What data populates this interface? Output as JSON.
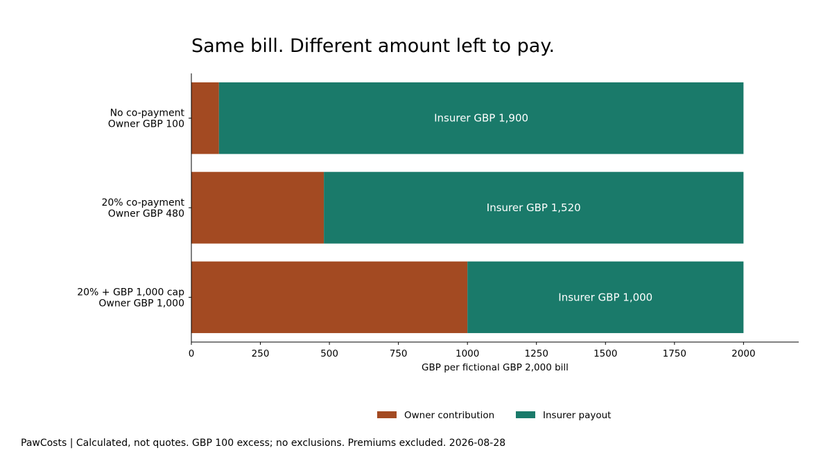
{
  "chart_data": {
    "type": "bar",
    "orientation": "horizontal",
    "stacked": true,
    "title": "Same bill. Different amount left to pay.",
    "xlabel": "GBP per fictional GBP 2,000 bill",
    "ylabel": "",
    "xlim": [
      0,
      2200
    ],
    "xticks": [
      "0",
      "250",
      "500",
      "750",
      "1000",
      "1250",
      "1500",
      "1750",
      "2000"
    ],
    "categories": [
      [
        "No co-payment",
        "Owner GBP 100"
      ],
      [
        "20% co-payment",
        "Owner GBP 480"
      ],
      [
        "20% + GBP 1,000 cap",
        "Owner GBP 1,000"
      ]
    ],
    "series": [
      {
        "name": "Owner contribution",
        "color": "#a34a22",
        "values": [
          100,
          480,
          1000
        ]
      },
      {
        "name": "Insurer payout",
        "color": "#1a7a6a",
        "values": [
          1900,
          1520,
          1000
        ]
      }
    ],
    "bar_labels": [
      "Insurer GBP 1,900",
      "Insurer GBP 1,520",
      "Insurer GBP 1,000"
    ],
    "legend_position": "bottom-center",
    "grid": false
  },
  "footer": {
    "text": "PawCosts | Calculated, not quotes. GBP 100 excess; no exclusions. Premiums excluded. 2026-08-28"
  }
}
